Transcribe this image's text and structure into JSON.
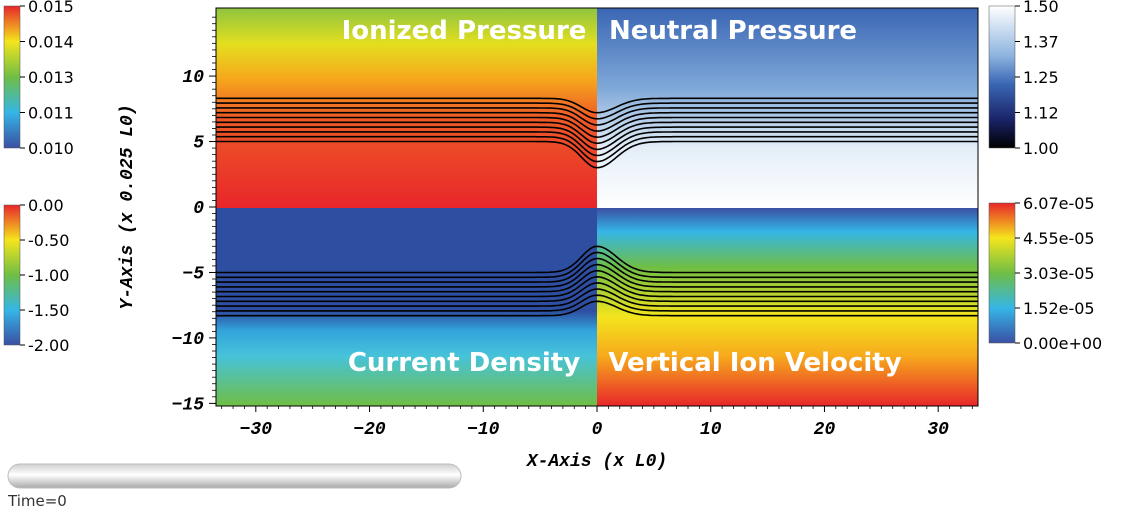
{
  "chart_data": {
    "type": "heatmap",
    "xlabel": "X-Axis (x L0)",
    "ylabel": "Y-Axis (x 0.025 L0)",
    "xlim": [
      -33.5,
      33.5
    ],
    "ylim": [
      -15.2,
      15.2
    ],
    "x_ticks": [
      -30,
      -20,
      -10,
      0,
      10,
      20,
      30
    ],
    "y_ticks": [
      -15,
      -10,
      -5,
      0,
      5,
      10
    ],
    "x_tick_labels": [
      "−30",
      "−20",
      "−10",
      "0",
      "10",
      "20",
      "30"
    ],
    "y_tick_labels": [
      "−15",
      "−10",
      "−5",
      "0",
      "5",
      "10"
    ],
    "panels": [
      {
        "name": "Ionized Pressure",
        "position": "top-left",
        "colorbar": {
          "min": 0.01,
          "max": 0.015,
          "labels": [
            "0.015",
            "0.014",
            "0.013",
            "0.011",
            "0.010"
          ]
        }
      },
      {
        "name": "Neutral Pressure",
        "position": "top-right",
        "colorbar": {
          "min": 1.0,
          "max": 1.5,
          "labels": [
            "1.50",
            "1.37",
            "1.25",
            "1.12",
            "1.00"
          ]
        }
      },
      {
        "name": "Current Density",
        "position": "bottom-left",
        "colorbar": {
          "min": -2.0,
          "max": 0.0,
          "labels": [
            "0.00",
            "-0.50",
            "-1.00",
            "-1.50",
            "-2.00"
          ]
        }
      },
      {
        "name": "Vertical Ion Velocity",
        "position": "bottom-right",
        "colorbar": {
          "min": 0.0,
          "max": 6.07e-05,
          "labels": [
            "6.07e-05",
            "4.55e-05",
            "3.03e-05",
            "1.52e-05",
            "0.00e+00"
          ]
        }
      }
    ],
    "field_lines": {
      "count": 10,
      "y_start": 5.0,
      "y_end": 8.3,
      "mirror_below_zero": true,
      "dip_center_x": 0,
      "dip_depth": 2.0
    }
  },
  "ui": {
    "time_label": "Time=0",
    "colors": {
      "rainbow": [
        "#3a4fa3",
        "#35b6e6",
        "#6fbe44",
        "#f4e51d",
        "#f6a91c",
        "#e8262a"
      ],
      "blue_white": [
        "#000000",
        "#1a2468",
        "#3a66b4",
        "#9cc3e6",
        "#ffffff"
      ]
    }
  }
}
